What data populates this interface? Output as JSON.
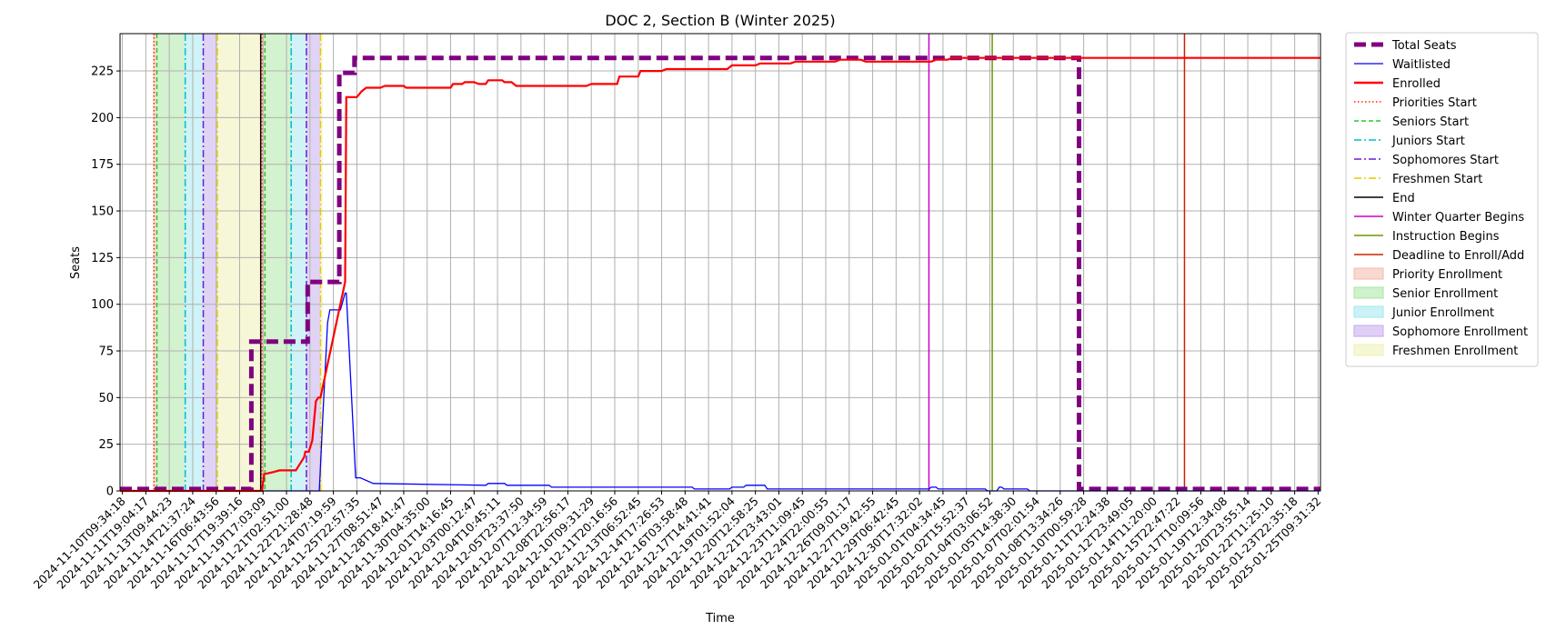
{
  "chart_data": {
    "type": "line",
    "title": "DOC 2, Section B (Winter 2025)",
    "xlabel": "Time",
    "ylabel": "Seats",
    "x_tick_labels": [
      "2024-11-10T09:34:18",
      "2024-11-11T19:04:17",
      "2024-11-13T09:44:23",
      "2024-11-14T21:37:24",
      "2024-11-16T06:43:56",
      "2024-11-17T19:39:16",
      "2024-11-19T17:03:09",
      "2024-11-21T02:51:00",
      "2024-11-22T21:28:48",
      "2024-11-24T07:19:59",
      "2024-11-25T22:57:35",
      "2024-11-27T08:51:47",
      "2024-11-28T18:41:47",
      "2024-11-30T04:35:00",
      "2024-12-01T14:16:45",
      "2024-12-03T00:12:47",
      "2024-12-04T10:45:11",
      "2024-12-05T23:37:50",
      "2024-12-07T12:34:59",
      "2024-12-08T22:56:17",
      "2024-12-10T09:31:29",
      "2024-12-11T20:16:56",
      "2024-12-13T06:52:45",
      "2024-12-14T17:26:53",
      "2024-12-16T03:58:48",
      "2024-12-17T14:41:41",
      "2024-12-19T01:52:04",
      "2024-12-20T12:58:25",
      "2024-12-21T23:43:01",
      "2024-12-23T11:09:45",
      "2024-12-24T22:00:55",
      "2024-12-26T09:01:17",
      "2024-12-27T19:42:55",
      "2024-12-29T06:42:45",
      "2024-12-30T17:32:02",
      "2025-01-01T04:34:45",
      "2025-01-02T15:52:37",
      "2025-01-04T03:06:52",
      "2025-01-05T14:38:30",
      "2025-01-07T02:01:54",
      "2025-01-08T13:34:26",
      "2025-01-10T00:59:28",
      "2025-01-11T12:24:38",
      "2025-01-12T23:49:05",
      "2025-01-14T11:20:00",
      "2025-01-15T22:47:22",
      "2025-01-17T10:09:56",
      "2025-01-19T12:34:08",
      "2025-01-20T23:55:14",
      "2025-01-22T11:25:10",
      "2025-01-23T22:35:18",
      "2025-01-25T09:31:32"
    ],
    "x_range_ticks": [
      -0.1,
      51.1
    ],
    "y_ticks": [
      0,
      25,
      50,
      75,
      100,
      125,
      150,
      175,
      200,
      225
    ],
    "ylim": [
      0,
      245
    ],
    "grid": true,
    "legend_position": "outside-right",
    "shaded_regions": [
      {
        "name": "Priority Enrollment",
        "color": "#f4b9a8",
        "start": 1.3,
        "end": 1.45
      },
      {
        "name": "Senior Enrollment",
        "color": "#a8e6a0",
        "start": 1.45,
        "end": 2.65
      },
      {
        "name": "Junior Enrollment",
        "color": "#a0e8ee",
        "start": 2.65,
        "end": 3.45
      },
      {
        "name": "Sophomore Enrollment",
        "color": "#c4a8ec",
        "start": 3.45,
        "end": 4.05
      },
      {
        "name": "Freshmen Enrollment",
        "color": "#eef0b0",
        "start": 4.05,
        "end": 5.9
      },
      {
        "name": "Priority Enrollment",
        "color": "#f4b9a8",
        "start": 5.92,
        "end": 6.05
      },
      {
        "name": "Senior Enrollment",
        "color": "#a8e6a0",
        "start": 6.05,
        "end": 7.2
      },
      {
        "name": "Junior Enrollment",
        "color": "#a0e8ee",
        "start": 7.2,
        "end": 7.85
      },
      {
        "name": "Sophomore Enrollment",
        "color": "#c4a8ec",
        "start": 7.85,
        "end": 8.45
      },
      {
        "name": "Freshmen Enrollment",
        "color": "#eef0b0",
        "start": 8.45,
        "end": 8.55
      }
    ],
    "vertical_markers": [
      {
        "name": "Priorities Start",
        "color": "#ff2a00",
        "style": "dotted",
        "x": 1.35
      },
      {
        "name": "Seniors Start",
        "color": "#22cc22",
        "style": "dashed",
        "x": 1.47
      },
      {
        "name": "Juniors Start",
        "color": "#00bcd4",
        "style": "dashdot",
        "x": 2.68
      },
      {
        "name": "Sophomores Start",
        "color": "#6a1bd9",
        "style": "dashdot",
        "x": 3.45
      },
      {
        "name": "Freshmen Start",
        "color": "#e3cc00",
        "style": "dashdot",
        "x": 4.05
      },
      {
        "name": "End",
        "color": "#000000",
        "style": "solid",
        "x": 5.9
      },
      {
        "name": "Priorities Start",
        "color": "#ff2a00",
        "style": "dotted",
        "x": 5.95
      },
      {
        "name": "Seniors Start",
        "color": "#22cc22",
        "style": "dashed",
        "x": 6.08
      },
      {
        "name": "Juniors Start",
        "color": "#00bcd4",
        "style": "dashdot",
        "x": 7.2
      },
      {
        "name": "Sophomores Start",
        "color": "#6a1bd9",
        "style": "dashdot",
        "x": 7.85
      },
      {
        "name": "Freshmen Start",
        "color": "#e3cc00",
        "style": "dashdot",
        "x": 8.45
      },
      {
        "name": "Winter Quarter Begins",
        "color": "#cc00cc",
        "style": "solid",
        "x": 34.4
      },
      {
        "name": "Instruction Begins",
        "color": "#6a9a00",
        "style": "solid",
        "x": 37.1
      },
      {
        "name": "Deadline to Enroll/Add",
        "color": "#cc2200",
        "style": "solid",
        "x": 45.3
      }
    ],
    "series": [
      {
        "name": "Total Seats",
        "color": "#800080",
        "style": "dashed-thick",
        "x": [
          -0.1,
          5.5,
          5.5,
          7.9,
          7.9,
          9.25,
          9.25,
          9.9,
          9.9,
          40.8,
          40.8,
          51.1
        ],
        "y": [
          1,
          1,
          80,
          80,
          112,
          112,
          224,
          224,
          232,
          232,
          1,
          1
        ]
      },
      {
        "name": "Waitlisted",
        "color": "#0000ff",
        "style": "solid",
        "x": [
          -0.1,
          8.4,
          8.55,
          8.75,
          8.85,
          9.0,
          9.2,
          9.3,
          9.5,
          9.55,
          9.95,
          10.0,
          10.15,
          10.7,
          15.5,
          15.6,
          16.3,
          16.4,
          18.2,
          18.3,
          24.3,
          24.4,
          25.9,
          26.0,
          26.5,
          26.6,
          27.4,
          27.5,
          34.4,
          34.5,
          34.7,
          34.8,
          36.8,
          36.9,
          37.3,
          37.4,
          37.5,
          37.6,
          38.6,
          38.7,
          51.1
        ],
        "y": [
          0,
          0,
          40,
          90,
          97,
          97,
          97,
          97,
          106,
          106,
          7,
          7,
          7,
          4,
          3,
          4,
          4,
          3,
          3,
          2,
          2,
          1,
          1,
          2,
          2,
          3,
          3,
          1,
          1,
          2,
          2,
          1,
          1,
          0,
          0,
          2,
          2,
          1,
          1,
          0,
          0
        ]
      },
      {
        "name": "Enrolled",
        "color": "#ff0000",
        "style": "solid",
        "x": [
          -0.1,
          5.95,
          6.05,
          6.4,
          6.7,
          7.4,
          7.5,
          7.75,
          7.8,
          7.95,
          8.1,
          8.25,
          8.35,
          8.45,
          9.5,
          9.55,
          10.0,
          10.2,
          10.4,
          11.0,
          11.2,
          12.0,
          12.1,
          14.0,
          14.1,
          14.5,
          14.6,
          15.0,
          15.2,
          15.5,
          15.6,
          16.2,
          16.3,
          16.6,
          16.8,
          19.8,
          20.0,
          21.1,
          21.2,
          22.0,
          22.1,
          23.0,
          23.2,
          25.8,
          26.0,
          27.0,
          27.2,
          28.5,
          28.7,
          30.4,
          30.6,
          31.5,
          31.7,
          34.5,
          34.7,
          35.2,
          35.4,
          51.1
        ],
        "y": [
          0,
          0,
          9,
          10,
          11,
          11,
          13,
          18,
          21,
          21,
          27,
          48,
          50,
          50,
          112,
          211,
          211,
          214,
          216,
          216,
          217,
          217,
          216,
          216,
          218,
          218,
          219,
          219,
          218,
          218,
          220,
          220,
          219,
          219,
          217,
          217,
          218,
          218,
          222,
          222,
          225,
          225,
          226,
          226,
          228,
          228,
          229,
          229,
          230,
          230,
          231,
          231,
          230,
          230,
          231,
          231,
          232,
          232
        ]
      }
    ]
  },
  "legend": {
    "items": [
      {
        "label": "Total Seats",
        "kind": "line",
        "color": "#800080",
        "style": "dashed-thick"
      },
      {
        "label": "Waitlisted",
        "kind": "line",
        "color": "#0000ff",
        "style": "solid-thin"
      },
      {
        "label": "Enrolled",
        "kind": "line",
        "color": "#ff0000",
        "style": "solid-thick"
      },
      {
        "label": "Priorities Start",
        "kind": "line",
        "color": "#ff2a00",
        "style": "dotted"
      },
      {
        "label": "Seniors Start",
        "kind": "line",
        "color": "#22cc22",
        "style": "dashed"
      },
      {
        "label": "Juniors Start",
        "kind": "line",
        "color": "#00bcd4",
        "style": "dashdot"
      },
      {
        "label": "Sophomores Start",
        "kind": "line",
        "color": "#6a1bd9",
        "style": "dashdot"
      },
      {
        "label": "Freshmen Start",
        "kind": "line",
        "color": "#e3cc00",
        "style": "dashdot"
      },
      {
        "label": "End",
        "kind": "line",
        "color": "#000000",
        "style": "solid"
      },
      {
        "label": "Winter Quarter Begins",
        "kind": "line",
        "color": "#cc00cc",
        "style": "solid"
      },
      {
        "label": "Instruction Begins",
        "kind": "line",
        "color": "#6a9a00",
        "style": "solid"
      },
      {
        "label": "Deadline to Enroll/Add",
        "kind": "line",
        "color": "#cc2200",
        "style": "solid"
      },
      {
        "label": "Priority Enrollment",
        "kind": "patch",
        "color": "#f4b9a8"
      },
      {
        "label": "Senior Enrollment",
        "kind": "patch",
        "color": "#a8e6a0"
      },
      {
        "label": "Junior Enrollment",
        "kind": "patch",
        "color": "#a0e8ee"
      },
      {
        "label": "Sophomore Enrollment",
        "kind": "patch",
        "color": "#c4a8ec"
      },
      {
        "label": "Freshmen Enrollment",
        "kind": "patch",
        "color": "#eef0b0"
      }
    ]
  }
}
